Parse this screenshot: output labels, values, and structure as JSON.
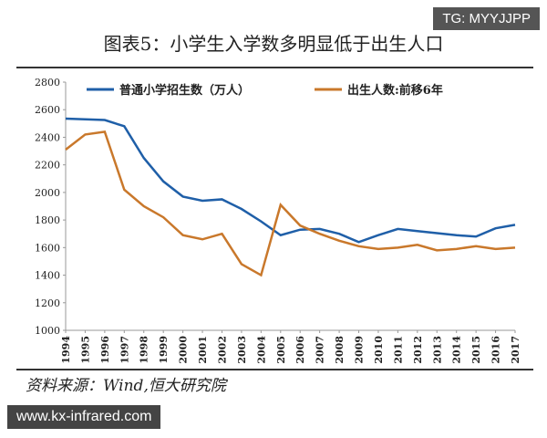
{
  "chart_data": {
    "type": "line",
    "title": "图表5：小学生入学数多明显低于出生人口",
    "categories": [
      "1994",
      "1995",
      "1996",
      "1997",
      "1998",
      "1999",
      "2000",
      "2001",
      "2002",
      "2003",
      "2004",
      "2005",
      "2006",
      "2007",
      "2008",
      "2009",
      "2010",
      "2011",
      "2012",
      "2013",
      "2014",
      "2015",
      "2016",
      "2017"
    ],
    "series": [
      {
        "name": "普通小学招生数（万人）",
        "color": "#1f5fa8",
        "values": [
          2535,
          2530,
          2525,
          2480,
          2250,
          2080,
          1970,
          1940,
          1950,
          1880,
          1790,
          1690,
          1730,
          1735,
          1700,
          1640,
          1690,
          1735,
          1720,
          1705,
          1690,
          1680,
          1740,
          1765
        ]
      },
      {
        "name": "出生人数:前移6年",
        "color": "#c9782b",
        "values": [
          2310,
          2420,
          2440,
          2020,
          1900,
          1820,
          1690,
          1660,
          1700,
          1480,
          1400,
          1910,
          1760,
          1700,
          1650,
          1610,
          1590,
          1600,
          1620,
          1580,
          1590,
          1610,
          1590,
          1600
        ]
      }
    ],
    "ylim": [
      1000,
      2800
    ],
    "yticks": [
      1000,
      1200,
      1400,
      1600,
      1800,
      2000,
      2200,
      2400,
      2600,
      2800
    ],
    "source": "资料来源：Wind,恒大研究院",
    "watermarks": [
      "TG: MYYJJPP",
      "www.kx-infrared.com"
    ]
  }
}
